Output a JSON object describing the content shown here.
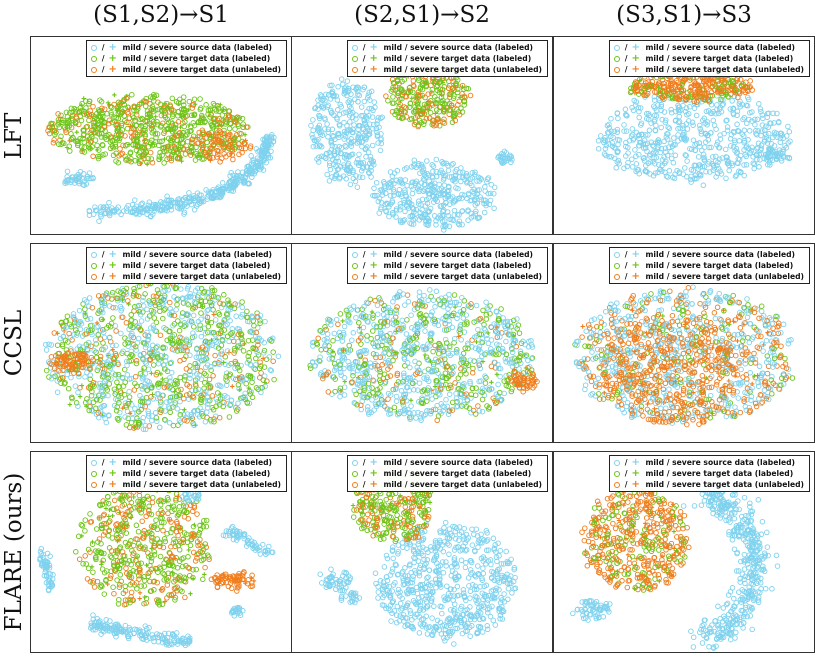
{
  "columns": [
    "(S1,S2)→S1",
    "(S2,S1)→S2",
    "(S3,S1)→S3"
  ],
  "rows": [
    "LFT",
    "CCSL",
    "FLARE (ours)"
  ],
  "legend": {
    "slash": "/",
    "entries": [
      {
        "label": "mild / severe source data (labeled)",
        "color": "#7fd2ee"
      },
      {
        "label": "mild / severe target data (labeled)",
        "color": "#6cc517"
      },
      {
        "label": "mild / severe target data (unlabeled)",
        "color": "#f07d1c"
      }
    ]
  },
  "chart_data": [
    {
      "type": "scatter",
      "method": "LFT",
      "task": "(S1,S2)→S1",
      "legend_position": "top-right"
    },
    {
      "type": "scatter",
      "method": "LFT",
      "task": "(S2,S1)→S2",
      "legend_position": "top-right"
    },
    {
      "type": "scatter",
      "method": "LFT",
      "task": "(S3,S1)→S3",
      "legend_position": "top-right"
    },
    {
      "type": "scatter",
      "method": "CCSL",
      "task": "(S1,S2)→S1",
      "legend_position": "top-right"
    },
    {
      "type": "scatter",
      "method": "CCSL",
      "task": "(S2,S1)→S2",
      "legend_position": "top-right"
    },
    {
      "type": "scatter",
      "method": "CCSL",
      "task": "(S3,S1)→S3",
      "legend_position": "top-right"
    },
    {
      "type": "scatter",
      "method": "FLARE (ours)",
      "task": "(S1,S2)→S1",
      "legend_position": "top-right"
    },
    {
      "type": "scatter",
      "method": "FLARE (ours)",
      "task": "(S2,S1)→S2",
      "legend_position": "top-right"
    },
    {
      "type": "scatter",
      "method": "FLARE (ours)",
      "task": "(S3,S1)→S3",
      "legend_position": "top-right"
    }
  ]
}
